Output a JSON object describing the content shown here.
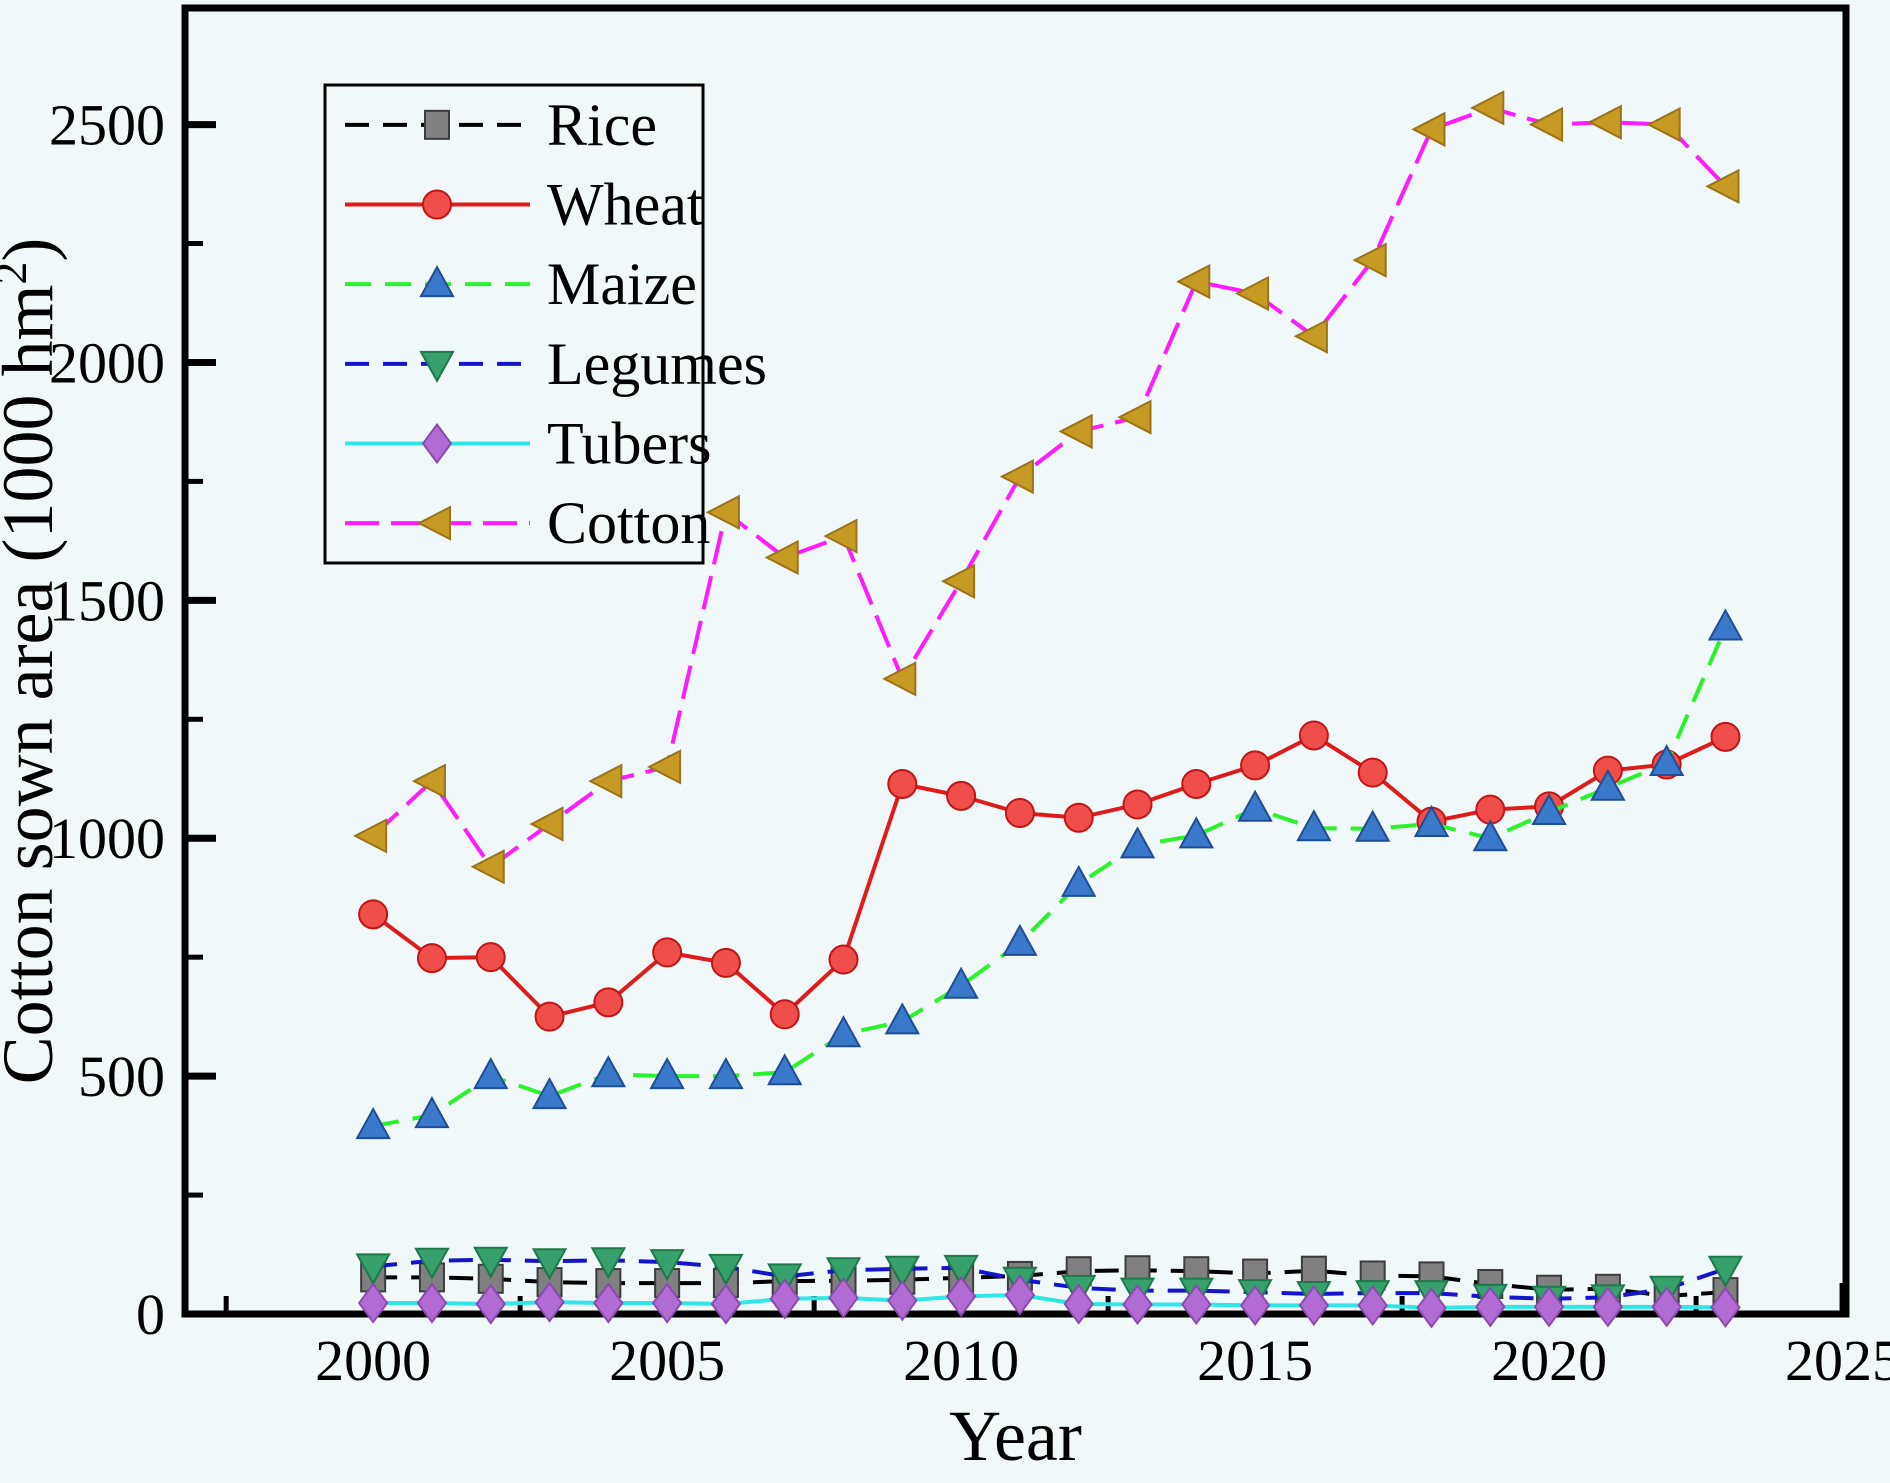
{
  "figure": {
    "background": "#f1f8fa",
    "frame_color": "#000000"
  },
  "chart_data": {
    "type": "line",
    "title": "",
    "xlabel": "Year",
    "ylabel": "Cotton sown area (1000 hm²)",
    "ylabel_parts": {
      "prefix": "Cotton sown area (1000 hm",
      "superscript": "2",
      "suffix": ")"
    },
    "xlim": [
      1996.8,
      2025.05
    ],
    "ylim": [
      0,
      2745
    ],
    "x_major_ticks": [
      2000,
      2005,
      2010,
      2015,
      2020,
      2025
    ],
    "x_major_tick_labels": [
      "2000",
      "2005",
      "2010",
      "2015",
      "2020",
      "2025"
    ],
    "x_minor_ticks": [
      1997.5,
      2002.5,
      2007.5,
      2012.5,
      2017.5,
      2022.5
    ],
    "y_major_ticks": [
      0,
      500,
      1000,
      1500,
      2000,
      2500
    ],
    "y_major_tick_labels": [
      "0",
      "500",
      "1000",
      "1500",
      "2000",
      "2500"
    ],
    "y_minor_ticks": [
      250,
      750,
      1250,
      1750,
      2250
    ],
    "grid": false,
    "legend_position": "upper-left",
    "x": [
      2000,
      2001,
      2002,
      2003,
      2004,
      2005,
      2006,
      2007,
      2008,
      2009,
      2010,
      2011,
      2012,
      2013,
      2014,
      2015,
      2016,
      2017,
      2018,
      2019,
      2020,
      2021,
      2022,
      2023
    ],
    "series": [
      {
        "name": "Rice",
        "line_color": "#000000",
        "line_dash": "24 14",
        "marker": {
          "shape": "square",
          "fill": "#808080",
          "edge": "#3c3c3c"
        },
        "values": [
          77,
          77,
          74,
          67,
          65,
          65,
          65,
          69,
          70,
          72,
          76,
          80,
          90,
          92,
          90,
          85,
          91,
          81,
          79,
          63,
          51,
          53,
          38,
          46
        ]
      },
      {
        "name": "Wheat",
        "line_color": "#e01b1b",
        "line_dash": null,
        "marker": {
          "shape": "circle",
          "fill": "#f04e4a",
          "edge": "#c01616"
        },
        "values": [
          840,
          748,
          750,
          625,
          655,
          760,
          738,
          630,
          745,
          1114,
          1089,
          1053,
          1043,
          1071,
          1114,
          1153,
          1216,
          1138,
          1035,
          1060,
          1067,
          1142,
          1155,
          1213
        ]
      },
      {
        "name": "Maize",
        "line_color": "#2bf32b",
        "line_dash": "26 14",
        "marker": {
          "shape": "triangle-up",
          "fill": "#3a78c9",
          "edge": "#1f4e96"
        },
        "values": [
          395,
          418,
          500,
          458,
          504,
          500,
          500,
          508,
          588,
          615,
          690,
          780,
          904,
          985,
          1006,
          1062,
          1021,
          1020,
          1030,
          1000,
          1055,
          1106,
          1158,
          1443
        ]
      },
      {
        "name": "Legumes",
        "line_color": "#1414cc",
        "line_dash": "24 14",
        "marker": {
          "shape": "triangle-down",
          "fill": "#38a06c",
          "edge": "#1e7a4a"
        },
        "values": [
          100,
          112,
          114,
          111,
          113,
          109,
          99,
          79,
          92,
          95,
          97,
          72,
          55,
          49,
          49,
          46,
          42,
          44,
          44,
          36,
          32,
          35,
          53,
          95
        ]
      },
      {
        "name": "Tubers",
        "line_color": "#30e6e6",
        "line_dash": null,
        "marker": {
          "shape": "diamond",
          "fill": "#b36bd4",
          "edge": "#8a4bb0"
        },
        "values": [
          23,
          23,
          21,
          25,
          23,
          23,
          21,
          32,
          34,
          28,
          37,
          40,
          21,
          20,
          20,
          18,
          18,
          18,
          13,
          15,
          15,
          15,
          15,
          14
        ]
      },
      {
        "name": "Cotton",
        "line_color": "#ff1aff",
        "line_dash": "34 12",
        "marker": {
          "shape": "triangle-left",
          "fill": "#c79a24",
          "edge": "#9a7418"
        },
        "values": [
          1005,
          1120,
          940,
          1030,
          1120,
          1150,
          1685,
          1590,
          1635,
          1335,
          1540,
          1760,
          1855,
          1885,
          2170,
          2145,
          2055,
          2215,
          2490,
          2535,
          2500,
          2505,
          2500,
          2370
        ]
      }
    ]
  }
}
